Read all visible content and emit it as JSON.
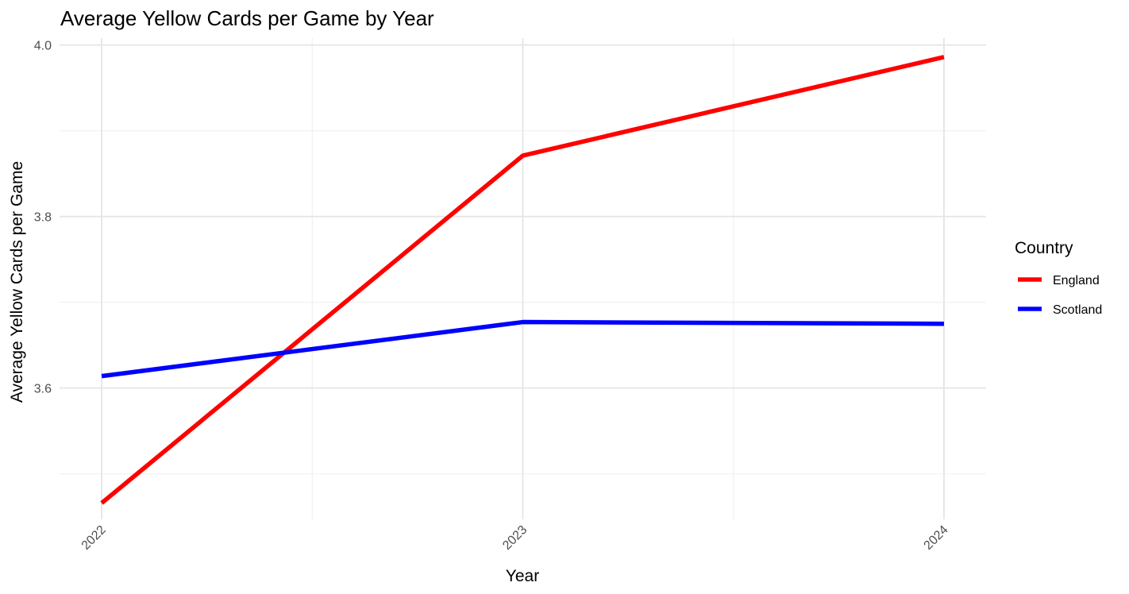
{
  "chart_data": {
    "type": "line",
    "title": "Average Yellow Cards per Game by Year",
    "xlabel": "Year",
    "ylabel": "Average Yellow Cards per Game",
    "x": [
      2022,
      2023,
      2024
    ],
    "x_tick_labels": [
      "2022",
      "2023",
      "2024"
    ],
    "y_ticks": [
      3.6,
      3.8,
      4.0
    ],
    "y_tick_labels": [
      "3.6",
      "3.8",
      "4.0"
    ],
    "ylim": [
      3.447,
      4.008
    ],
    "grid": true,
    "legend": {
      "title": "Country",
      "position": "right"
    },
    "series": [
      {
        "name": "England",
        "color": "#ff0000",
        "values": [
          3.466,
          3.871,
          3.986
        ]
      },
      {
        "name": "Scotland",
        "color": "#0000ff",
        "values": [
          3.614,
          3.677,
          3.675
        ]
      }
    ]
  }
}
